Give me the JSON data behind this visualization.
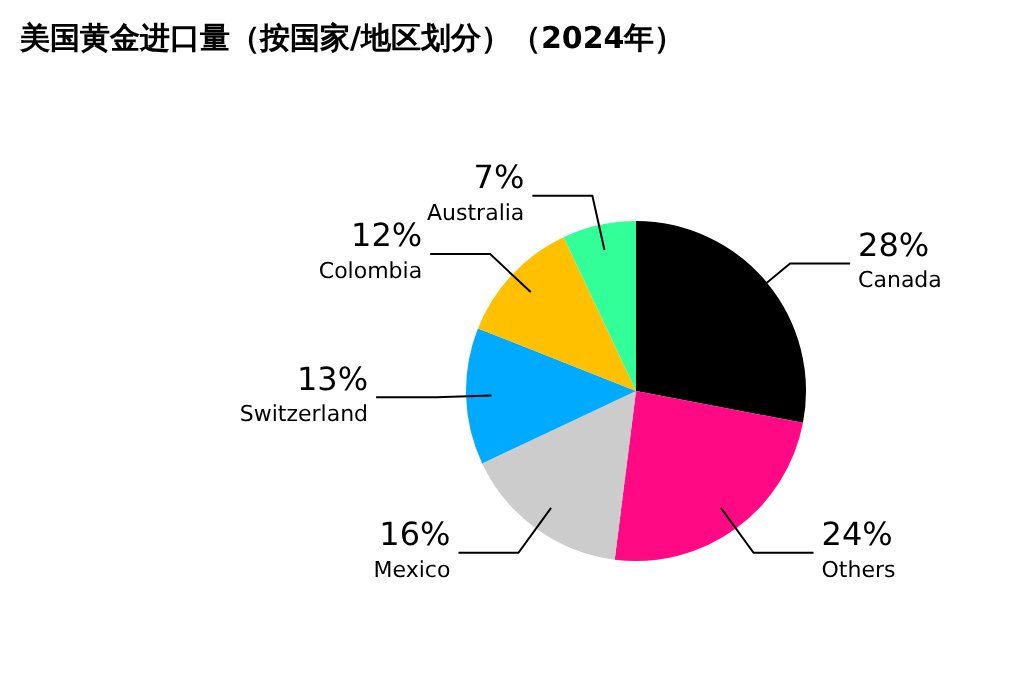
{
  "chart_data": {
    "type": "pie",
    "title": "美国黄金进口量（按国家/地区划分）（2024年）",
    "categories": [
      "Canada",
      "Others",
      "Mexico",
      "Switzerland",
      "Colombia",
      "Australia"
    ],
    "values": [
      28,
      24,
      16,
      13,
      12,
      7
    ],
    "colors": [
      "#000000",
      "#ff0a84",
      "#cccccc",
      "#00aaff",
      "#ffc000",
      "#33ff99"
    ],
    "value_labels": [
      "28%",
      "24%",
      "16%",
      "13%",
      "12%",
      "7%"
    ],
    "legend": false
  }
}
